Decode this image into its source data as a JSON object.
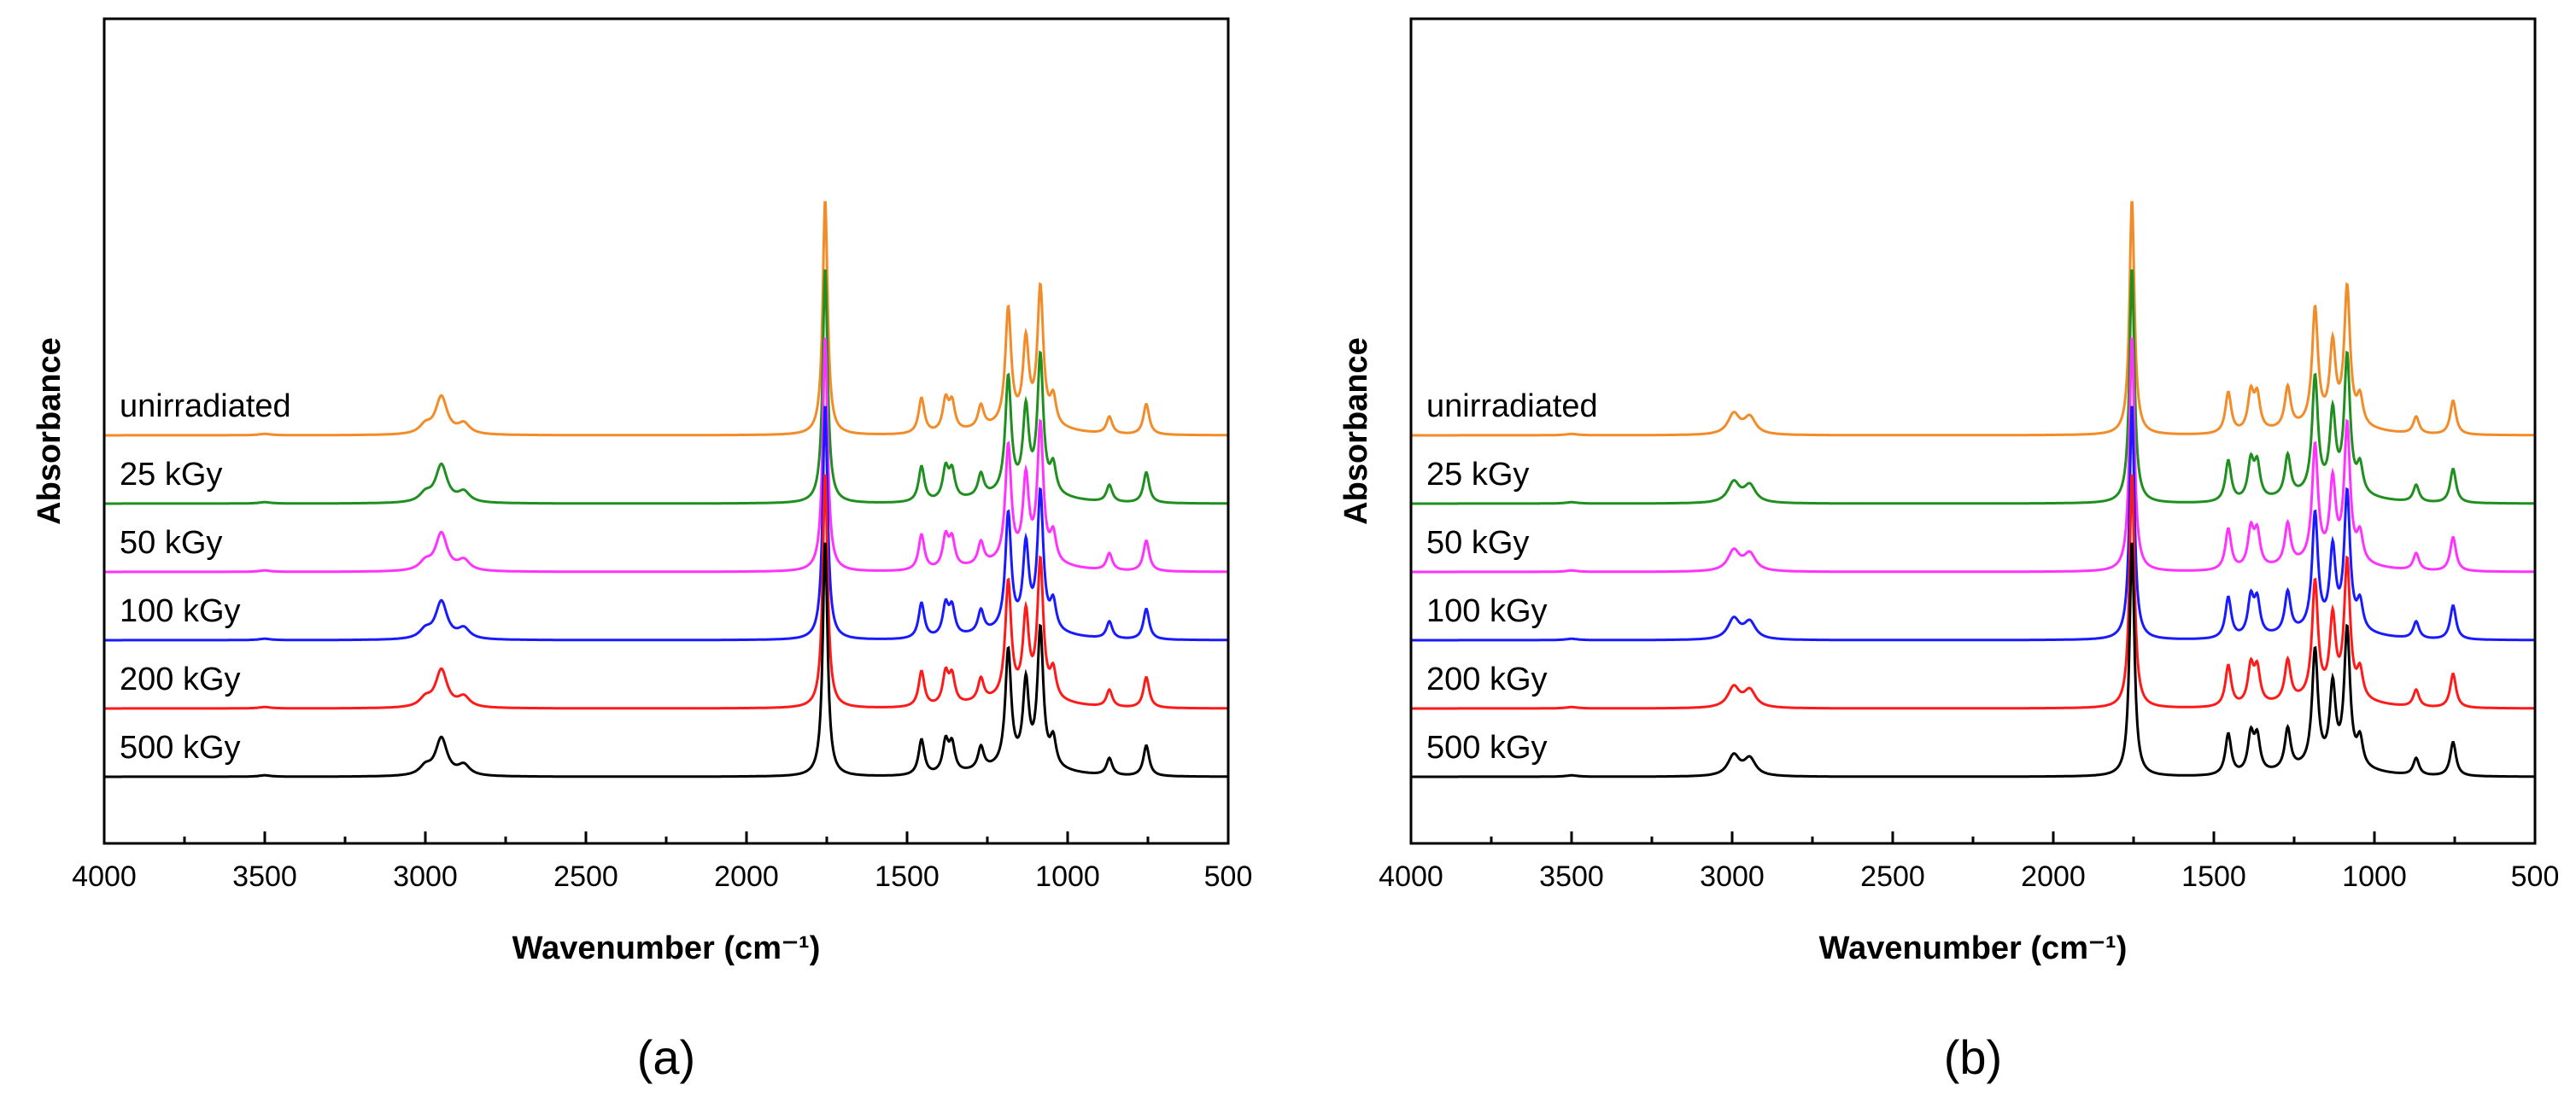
{
  "chart_data": [
    {
      "type": "line",
      "panel_label": "(a)",
      "xlabel": "Wavenumber (cm⁻¹)",
      "ylabel": "Absorbance",
      "xlim": [
        4000,
        500
      ],
      "x_reversed": true,
      "x_ticks": [
        "4000",
        "3500",
        "3000",
        "2500",
        "2000",
        "1500",
        "1000",
        "500"
      ],
      "y_ticks_shown": false,
      "grid": false,
      "series": [
        {
          "name": "unirradiated",
          "color": "#f28c28",
          "offset": 5,
          "peaks": [
            [
              3500,
              0.02
            ],
            [
              3000,
              0.12
            ],
            [
              2950,
              0.55
            ],
            [
              2880,
              0.15
            ],
            [
              1755,
              3.45
            ],
            [
              1455,
              0.52
            ],
            [
              1380,
              0.45
            ],
            [
              1360,
              0.4
            ],
            [
              1270,
              0.33
            ],
            [
              1185,
              1.7
            ],
            [
              1130,
              1.2
            ],
            [
              1085,
              2.0
            ],
            [
              1045,
              0.4
            ],
            [
              870,
              0.25
            ],
            [
              755,
              0.45
            ]
          ]
        },
        {
          "name": "25 kGy",
          "color": "#1f8f1f",
          "offset": 4,
          "peaks": [
            [
              3500,
              0.02
            ],
            [
              3000,
              0.12
            ],
            [
              2950,
              0.55
            ],
            [
              2880,
              0.15
            ],
            [
              1755,
              3.45
            ],
            [
              1455,
              0.52
            ],
            [
              1380,
              0.45
            ],
            [
              1360,
              0.4
            ],
            [
              1270,
              0.33
            ],
            [
              1185,
              1.7
            ],
            [
              1130,
              1.2
            ],
            [
              1085,
              2.0
            ],
            [
              1045,
              0.4
            ],
            [
              870,
              0.25
            ],
            [
              755,
              0.45
            ]
          ]
        },
        {
          "name": "50 kGy",
          "color": "#ff33ff",
          "offset": 3,
          "peaks": [
            [
              3500,
              0.02
            ],
            [
              3000,
              0.12
            ],
            [
              2950,
              0.55
            ],
            [
              2880,
              0.15
            ],
            [
              1755,
              3.45
            ],
            [
              1455,
              0.52
            ],
            [
              1380,
              0.45
            ],
            [
              1360,
              0.4
            ],
            [
              1270,
              0.33
            ],
            [
              1185,
              1.7
            ],
            [
              1130,
              1.2
            ],
            [
              1085,
              2.0
            ],
            [
              1045,
              0.4
            ],
            [
              870,
              0.25
            ],
            [
              755,
              0.45
            ]
          ]
        },
        {
          "name": "100 kGy",
          "color": "#1a1aff",
          "offset": 2,
          "peaks": [
            [
              3500,
              0.02
            ],
            [
              3000,
              0.12
            ],
            [
              2950,
              0.55
            ],
            [
              2880,
              0.15
            ],
            [
              1755,
              3.45
            ],
            [
              1455,
              0.52
            ],
            [
              1380,
              0.45
            ],
            [
              1360,
              0.4
            ],
            [
              1270,
              0.33
            ],
            [
              1185,
              1.7
            ],
            [
              1130,
              1.2
            ],
            [
              1085,
              2.0
            ],
            [
              1045,
              0.4
            ],
            [
              870,
              0.25
            ],
            [
              755,
              0.45
            ]
          ]
        },
        {
          "name": "200 kGy",
          "color": "#ff1a1a",
          "offset": 1,
          "peaks": [
            [
              3500,
              0.02
            ],
            [
              3000,
              0.12
            ],
            [
              2950,
              0.55
            ],
            [
              2880,
              0.15
            ],
            [
              1755,
              3.45
            ],
            [
              1455,
              0.52
            ],
            [
              1380,
              0.45
            ],
            [
              1360,
              0.4
            ],
            [
              1270,
              0.33
            ],
            [
              1185,
              1.7
            ],
            [
              1130,
              1.2
            ],
            [
              1085,
              2.0
            ],
            [
              1045,
              0.4
            ],
            [
              870,
              0.25
            ],
            [
              755,
              0.45
            ]
          ]
        },
        {
          "name": "500 kGy",
          "color": "#000000",
          "offset": 0,
          "peaks": [
            [
              3500,
              0.02
            ],
            [
              3000,
              0.12
            ],
            [
              2950,
              0.55
            ],
            [
              2880,
              0.15
            ],
            [
              1755,
              3.45
            ],
            [
              1455,
              0.52
            ],
            [
              1380,
              0.45
            ],
            [
              1360,
              0.4
            ],
            [
              1270,
              0.33
            ],
            [
              1185,
              1.7
            ],
            [
              1130,
              1.2
            ],
            [
              1085,
              2.0
            ],
            [
              1045,
              0.4
            ],
            [
              870,
              0.25
            ],
            [
              755,
              0.45
            ]
          ]
        }
      ]
    },
    {
      "type": "line",
      "panel_label": "(b)",
      "xlabel": "Wavenumber (cm⁻¹)",
      "ylabel": "Absorbance",
      "xlim": [
        4000,
        500
      ],
      "x_reversed": true,
      "x_ticks": [
        "4000",
        "3500",
        "3000",
        "2500",
        "2000",
        "1500",
        "1000",
        "500"
      ],
      "y_ticks_shown": false,
      "grid": false,
      "series": [
        {
          "name": "unirradiated",
          "color": "#f28c28",
          "offset": 5,
          "peaks": [
            [
              3500,
              0.02
            ],
            [
              2995,
              0.3
            ],
            [
              2945,
              0.25
            ],
            [
              1755,
              3.45
            ],
            [
              1455,
              0.6
            ],
            [
              1385,
              0.55
            ],
            [
              1365,
              0.5
            ],
            [
              1270,
              0.6
            ],
            [
              1185,
              1.7
            ],
            [
              1130,
              1.15
            ],
            [
              1085,
              2.0
            ],
            [
              1045,
              0.4
            ],
            [
              870,
              0.25
            ],
            [
              755,
              0.5
            ]
          ]
        },
        {
          "name": "25 kGy",
          "color": "#1f8f1f",
          "offset": 4,
          "peaks": [
            [
              3500,
              0.02
            ],
            [
              2995,
              0.3
            ],
            [
              2945,
              0.25
            ],
            [
              1755,
              3.45
            ],
            [
              1455,
              0.6
            ],
            [
              1385,
              0.55
            ],
            [
              1365,
              0.5
            ],
            [
              1270,
              0.6
            ],
            [
              1185,
              1.7
            ],
            [
              1130,
              1.15
            ],
            [
              1085,
              2.0
            ],
            [
              1045,
              0.4
            ],
            [
              870,
              0.25
            ],
            [
              755,
              0.5
            ]
          ]
        },
        {
          "name": "50 kGy",
          "color": "#ff33ff",
          "offset": 3,
          "peaks": [
            [
              3500,
              0.02
            ],
            [
              2995,
              0.3
            ],
            [
              2945,
              0.25
            ],
            [
              1755,
              3.45
            ],
            [
              1455,
              0.6
            ],
            [
              1385,
              0.55
            ],
            [
              1365,
              0.5
            ],
            [
              1270,
              0.6
            ],
            [
              1185,
              1.7
            ],
            [
              1130,
              1.15
            ],
            [
              1085,
              2.0
            ],
            [
              1045,
              0.4
            ],
            [
              870,
              0.25
            ],
            [
              755,
              0.5
            ]
          ]
        },
        {
          "name": "100 kGy",
          "color": "#1a1aff",
          "offset": 2,
          "peaks": [
            [
              3500,
              0.02
            ],
            [
              2995,
              0.3
            ],
            [
              2945,
              0.25
            ],
            [
              1755,
              3.45
            ],
            [
              1455,
              0.6
            ],
            [
              1385,
              0.55
            ],
            [
              1365,
              0.5
            ],
            [
              1270,
              0.6
            ],
            [
              1185,
              1.7
            ],
            [
              1130,
              1.15
            ],
            [
              1085,
              2.0
            ],
            [
              1045,
              0.4
            ],
            [
              870,
              0.25
            ],
            [
              755,
              0.5
            ]
          ]
        },
        {
          "name": "200 kGy",
          "color": "#ff1a1a",
          "offset": 1,
          "peaks": [
            [
              3500,
              0.02
            ],
            [
              2995,
              0.3
            ],
            [
              2945,
              0.25
            ],
            [
              1755,
              3.45
            ],
            [
              1455,
              0.6
            ],
            [
              1385,
              0.55
            ],
            [
              1365,
              0.5
            ],
            [
              1270,
              0.6
            ],
            [
              1185,
              1.7
            ],
            [
              1130,
              1.15
            ],
            [
              1085,
              2.0
            ],
            [
              1045,
              0.4
            ],
            [
              870,
              0.25
            ],
            [
              755,
              0.5
            ]
          ]
        },
        {
          "name": "500 kGy",
          "color": "#000000",
          "offset": 0,
          "peaks": [
            [
              3500,
              0.02
            ],
            [
              2995,
              0.3
            ],
            [
              2945,
              0.25
            ],
            [
              1755,
              3.45
            ],
            [
              1455,
              0.6
            ],
            [
              1385,
              0.55
            ],
            [
              1365,
              0.5
            ],
            [
              1270,
              0.6
            ],
            [
              1185,
              1.7
            ],
            [
              1130,
              1.15
            ],
            [
              1085,
              2.0
            ],
            [
              1045,
              0.4
            ],
            [
              870,
              0.25
            ],
            [
              755,
              0.5
            ]
          ]
        }
      ]
    }
  ]
}
